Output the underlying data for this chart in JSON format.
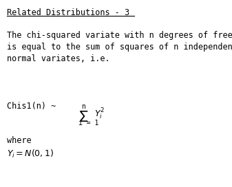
{
  "title": "Related Distributions - 3",
  "body_line1": "The chi-squared variate with n degrees of freedom",
  "body_line2": "is equal to the sum of squares of n independent unit",
  "body_line3": "normal variates, i.e.",
  "where_text": "where",
  "bg_color": "#ffffff",
  "text_color": "#000000",
  "font_size": 8.5,
  "title_font_size": 8.5,
  "formula_left": "Chis1(n) ~ ",
  "sum_top": "n",
  "sum_symbol": "Σ",
  "sum_bottom": "i = 1",
  "yi2": "$Y_i^2$",
  "where_formula": "$Y_i = N(0,1)$"
}
